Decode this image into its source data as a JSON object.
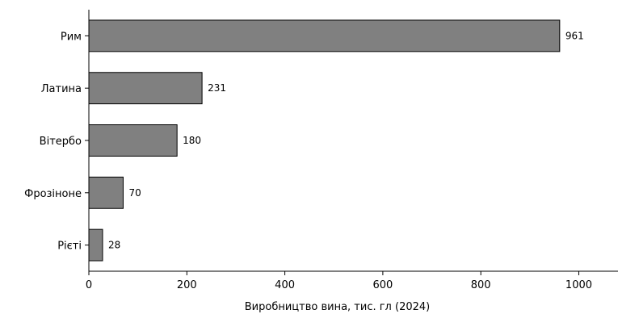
{
  "chart_data": {
    "type": "bar",
    "orientation": "horizontal",
    "categories": [
      "Рим",
      "Латина",
      "Вітербо",
      "Фрозіноне",
      "Рієті"
    ],
    "values": [
      961,
      231,
      180,
      70,
      28
    ],
    "title": "",
    "xlabel": "Виробництво вина, тис. гл (2024)",
    "ylabel": "",
    "xlim": [
      0,
      1080
    ],
    "xticks": [
      0,
      200,
      400,
      600,
      800,
      1000
    ],
    "grid": false,
    "bar_color": "#808080",
    "edge_color": "#000000"
  }
}
